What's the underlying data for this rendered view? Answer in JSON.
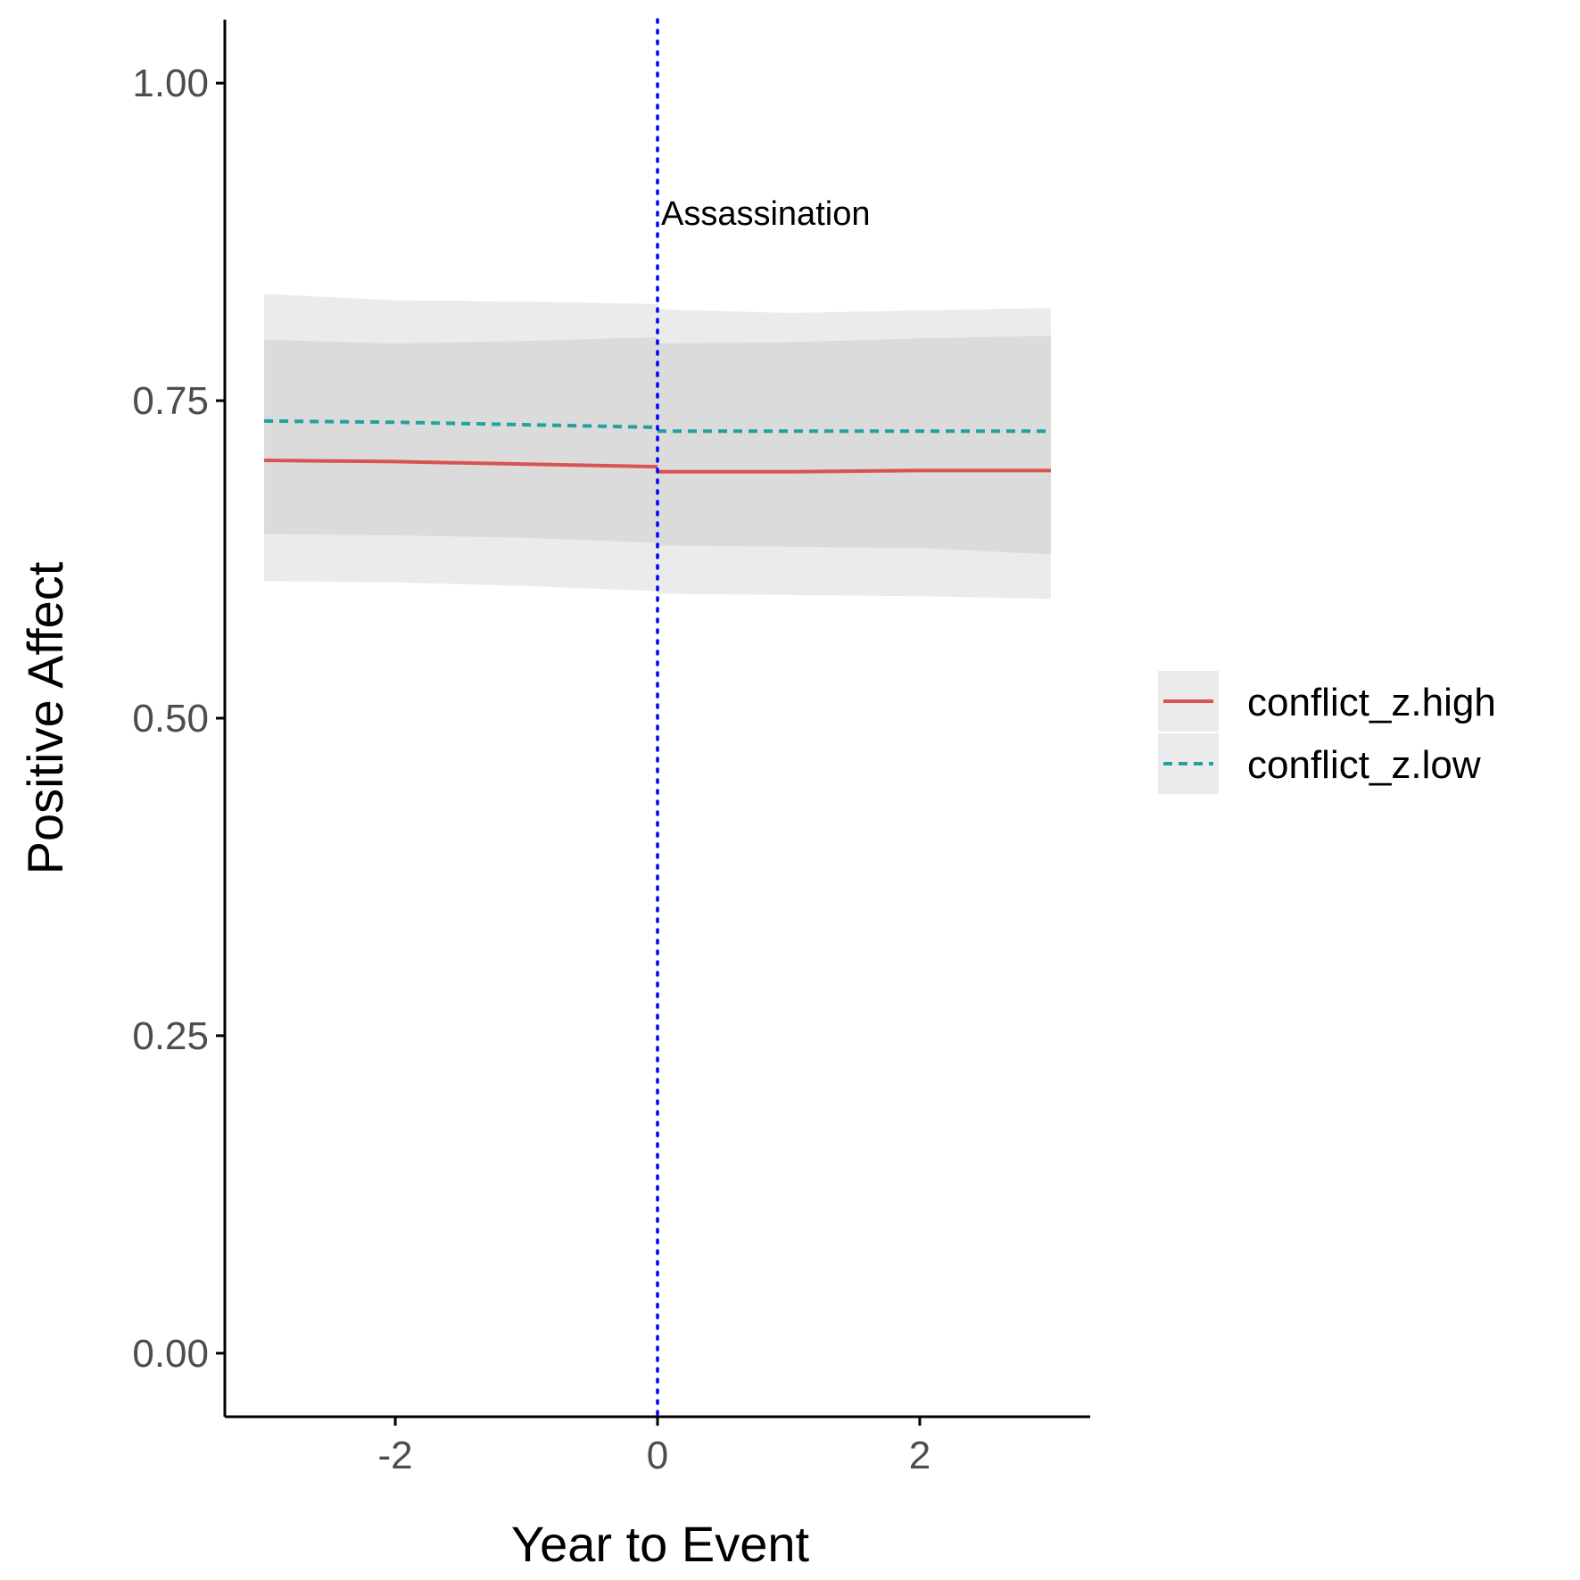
{
  "chart_data": {
    "type": "line",
    "title": "",
    "xlabel": "Year to Event",
    "ylabel": "Positive Affect",
    "xlim": [
      -3.3,
      3.3
    ],
    "ylim": [
      -0.05,
      1.05
    ],
    "x_ticks": [
      -2,
      0,
      2
    ],
    "x_tick_labels": [
      "-2",
      "0",
      "2"
    ],
    "y_ticks": [
      0,
      0.25,
      0.5,
      0.75,
      1.0
    ],
    "y_tick_labels": [
      "0.00",
      "0.25",
      "0.50",
      "0.75",
      "1.00"
    ],
    "grid": false,
    "legend_position": "right",
    "series": [
      {
        "name": "conflict_z.high",
        "linetype": "solid",
        "color": "#d9534f",
        "segments": [
          {
            "x": [
              -3,
              -2,
              -1,
              0
            ],
            "y": [
              0.703,
              0.702,
              0.7,
              0.698
            ],
            "ymin": [
              0.645,
              0.644,
              0.642,
              0.638
            ],
            "ymax": [
              0.798,
              0.795,
              0.797,
              0.8
            ]
          },
          {
            "x": [
              0,
              1,
              2,
              3
            ],
            "y": [
              0.694,
              0.694,
              0.695,
              0.695
            ],
            "ymin": [
              0.636,
              0.635,
              0.634,
              0.629
            ],
            "ymax": [
              0.795,
              0.796,
              0.799,
              0.801
            ]
          }
        ]
      },
      {
        "name": "conflict_z.low",
        "linetype": "dashed",
        "color": "#20a39e",
        "segments": [
          {
            "x": [
              -3,
              -2,
              -1,
              0
            ],
            "y": [
              0.734,
              0.733,
              0.731,
              0.729
            ],
            "ymin": [
              0.608,
              0.607,
              0.604,
              0.6
            ],
            "ymax": [
              0.834,
              0.829,
              0.828,
              0.826
            ]
          },
          {
            "x": [
              0,
              1,
              2,
              3
            ],
            "y": [
              0.726,
              0.726,
              0.726,
              0.726
            ],
            "ymin": [
              0.598,
              0.597,
              0.596,
              0.594
            ],
            "ymax": [
              0.822,
              0.819,
              0.821,
              0.823
            ]
          }
        ]
      }
    ],
    "vline": {
      "x": 0,
      "color": "#0000ff",
      "linetype": "dotted"
    },
    "annotation": {
      "text": "Assassination",
      "x": 0.02,
      "y": 0.9
    }
  }
}
